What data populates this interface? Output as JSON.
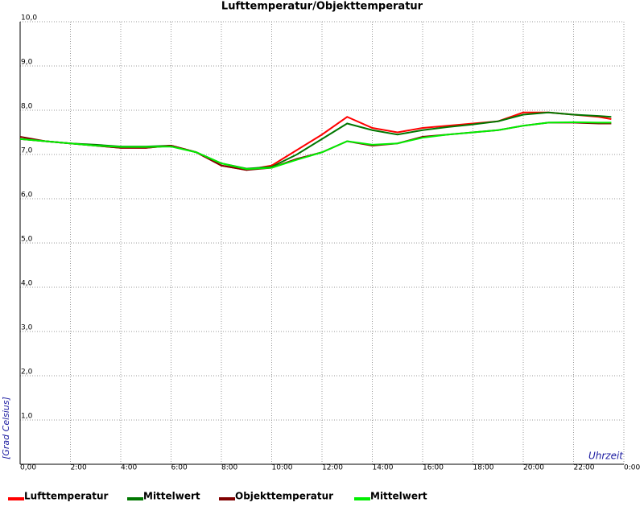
{
  "chart_data": {
    "type": "line",
    "title": "Lufttemperatur/Objekttemperatur",
    "y_label": "[Grad Celsius]",
    "x_label": "Uhrzeit",
    "x": [
      0,
      1,
      2,
      3,
      4,
      5,
      6,
      7,
      8,
      9,
      10,
      11,
      12,
      13,
      14,
      15,
      16,
      17,
      18,
      19,
      20,
      21,
      22,
      23,
      23.5
    ],
    "series": [
      {
        "name": "Lufttemperatur",
        "color": "#ff0000",
        "values": [
          7.35,
          7.3,
          7.25,
          7.2,
          7.15,
          7.15,
          7.2,
          7.05,
          6.75,
          6.65,
          6.75,
          7.1,
          7.45,
          7.85,
          7.6,
          7.5,
          7.6,
          7.65,
          7.7,
          7.75,
          7.95,
          7.95,
          7.9,
          7.85,
          7.8
        ]
      },
      {
        "name": "Mittelwert",
        "color": "#007700",
        "values": [
          7.35,
          7.3,
          7.25,
          7.22,
          7.18,
          7.18,
          7.2,
          7.05,
          6.8,
          6.68,
          6.72,
          7.0,
          7.35,
          7.7,
          7.55,
          7.45,
          7.55,
          7.62,
          7.68,
          7.75,
          7.9,
          7.95,
          7.9,
          7.87,
          7.85
        ]
      },
      {
        "name": "Objekttemperatur",
        "color": "#800000",
        "values": [
          7.4,
          7.3,
          7.25,
          7.2,
          7.15,
          7.15,
          7.2,
          7.05,
          6.75,
          6.65,
          6.7,
          6.9,
          7.05,
          7.3,
          7.2,
          7.25,
          7.4,
          7.45,
          7.5,
          7.55,
          7.65,
          7.72,
          7.72,
          7.7,
          7.7
        ]
      },
      {
        "name": "Mittelwert",
        "color": "#00ee00",
        "values": [
          7.35,
          7.3,
          7.25,
          7.2,
          7.17,
          7.17,
          7.18,
          7.05,
          6.8,
          6.67,
          6.7,
          6.88,
          7.05,
          7.3,
          7.22,
          7.25,
          7.38,
          7.45,
          7.5,
          7.55,
          7.65,
          7.72,
          7.73,
          7.72,
          7.72
        ]
      }
    ],
    "xlim": [
      0,
      24
    ],
    "xticks": [
      {
        "value": 0,
        "label": "0,00"
      },
      {
        "value": 2,
        "label": "2:00"
      },
      {
        "value": 4,
        "label": "4:00"
      },
      {
        "value": 6,
        "label": "6:00"
      },
      {
        "value": 8,
        "label": "8:00"
      },
      {
        "value": 10,
        "label": "10:00"
      },
      {
        "value": 12,
        "label": "12:00"
      },
      {
        "value": 14,
        "label": "14:00"
      },
      {
        "value": 16,
        "label": "16:00"
      },
      {
        "value": 18,
        "label": "18:00"
      },
      {
        "value": 20,
        "label": "20:00"
      },
      {
        "value": 22,
        "label": "22:00"
      },
      {
        "value": 24,
        "label": "0:00"
      }
    ],
    "ylim": [
      0,
      10
    ],
    "yticks": [
      {
        "value": 1,
        "label": "1,0"
      },
      {
        "value": 2,
        "label": "2,0"
      },
      {
        "value": 3,
        "label": "3,0"
      },
      {
        "value": 4,
        "label": "4,0"
      },
      {
        "value": 5,
        "label": "5,0"
      },
      {
        "value": 6,
        "label": "6,0"
      },
      {
        "value": 7,
        "label": "7,0"
      },
      {
        "value": 8,
        "label": "8,0"
      },
      {
        "value": 9,
        "label": "9,0"
      },
      {
        "value": 10,
        "label": "10,0"
      }
    ],
    "grid": true
  }
}
